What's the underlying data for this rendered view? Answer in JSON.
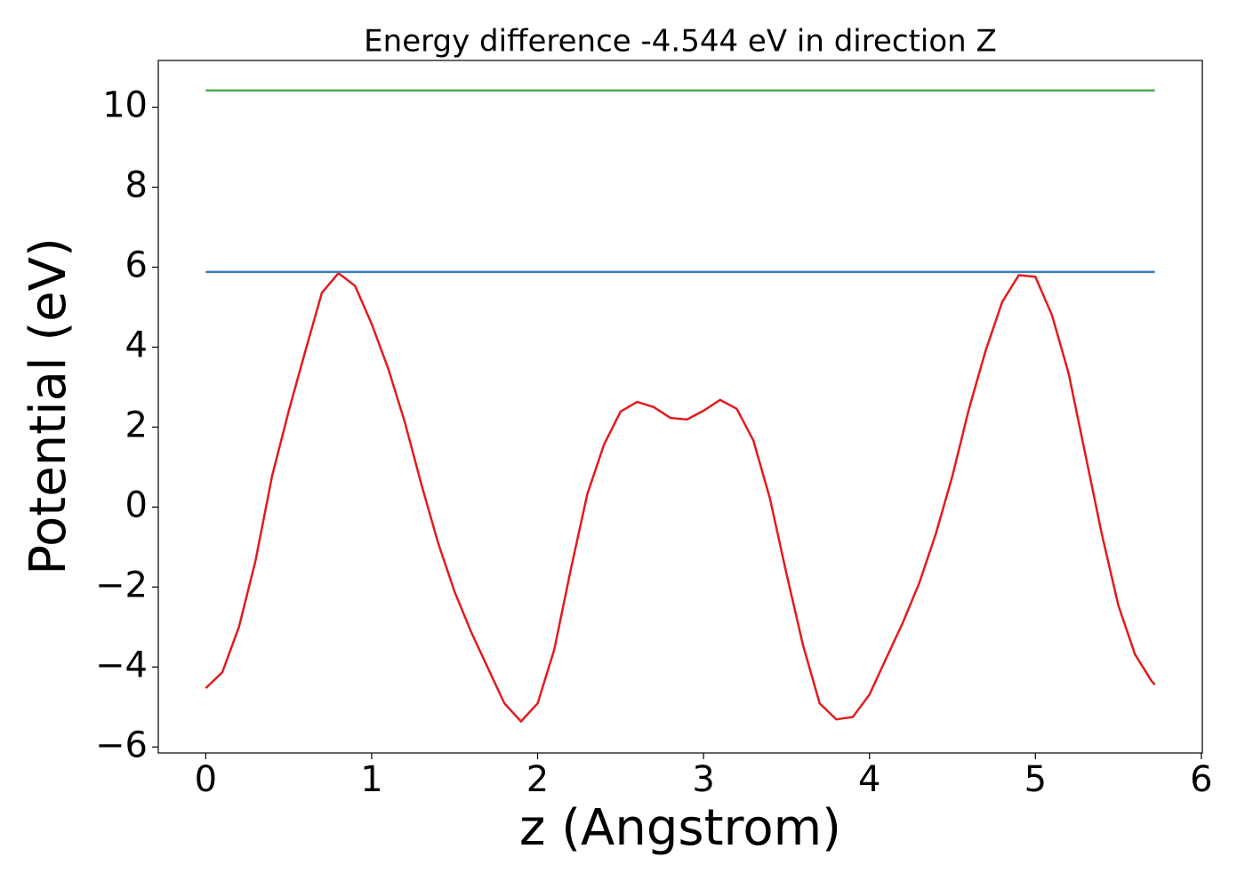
{
  "chart_data": {
    "type": "line",
    "title": "Energy difference -4.544 eV in direction Z",
    "x_label": "z (Angstrom)",
    "y_label": "Potential (eV)",
    "xlim": [
      -0.286,
      6.006
    ],
    "ylim": [
      -6.15,
      11.17
    ],
    "xticks": [
      0,
      1,
      2,
      3,
      4,
      5,
      6
    ],
    "yticks": [
      {
        "value": -6,
        "label": "−6"
      },
      {
        "value": -4,
        "label": "−4"
      },
      {
        "value": -2,
        "label": "−2"
      },
      0,
      2,
      4,
      6,
      8,
      10
    ],
    "series": [
      {
        "color": "#e41a1c",
        "x": [
          0,
          0.1,
          0.2,
          0.3,
          0.4,
          0.5,
          0.6,
          0.7,
          0.8,
          0.9,
          1.0,
          1.1,
          1.2,
          1.3,
          1.4,
          1.5,
          1.6,
          1.7,
          1.8,
          1.9,
          2.0,
          2.1,
          2.2,
          2.3,
          2.4,
          2.5,
          2.6,
          2.7,
          2.8,
          2.9,
          3.0,
          3.1,
          3.2,
          3.3,
          3.4,
          3.5,
          3.6,
          3.7,
          3.8,
          3.9,
          4.0,
          4.1,
          4.2,
          4.3,
          4.4,
          4.5,
          4.6,
          4.7,
          4.8,
          4.9,
          5.0,
          5.1,
          5.2,
          5.3,
          5.4,
          5.5,
          5.6,
          5.7,
          5.72
        ],
        "values": [
          -4.53,
          -4.13,
          -3.0,
          -1.34,
          0.78,
          2.4,
          3.9,
          5.36,
          5.85,
          5.53,
          4.58,
          3.46,
          2.12,
          0.56,
          -0.89,
          -2.12,
          -3.13,
          -4.02,
          -4.91,
          -5.36,
          -4.91,
          -3.57,
          -1.56,
          0.33,
          1.56,
          2.39,
          2.63,
          2.5,
          2.23,
          2.19,
          2.41,
          2.68,
          2.46,
          1.67,
          0.22,
          -1.67,
          -3.46,
          -4.91,
          -5.31,
          -5.25,
          -4.69,
          -3.79,
          -2.9,
          -1.9,
          -0.67,
          0.78,
          2.46,
          3.91,
          5.13,
          5.8,
          5.76,
          4.8,
          3.35,
          1.34,
          -0.67,
          -2.46,
          -3.68,
          -4.35,
          -4.44
        ]
      },
      {
        "color": "#377eb8",
        "x": [
          0,
          5.72
        ],
        "values": [
          5.88,
          5.88
        ]
      },
      {
        "color": "#4daf4a",
        "x": [
          0,
          5.72
        ],
        "values": [
          10.42,
          10.42
        ]
      }
    ]
  }
}
